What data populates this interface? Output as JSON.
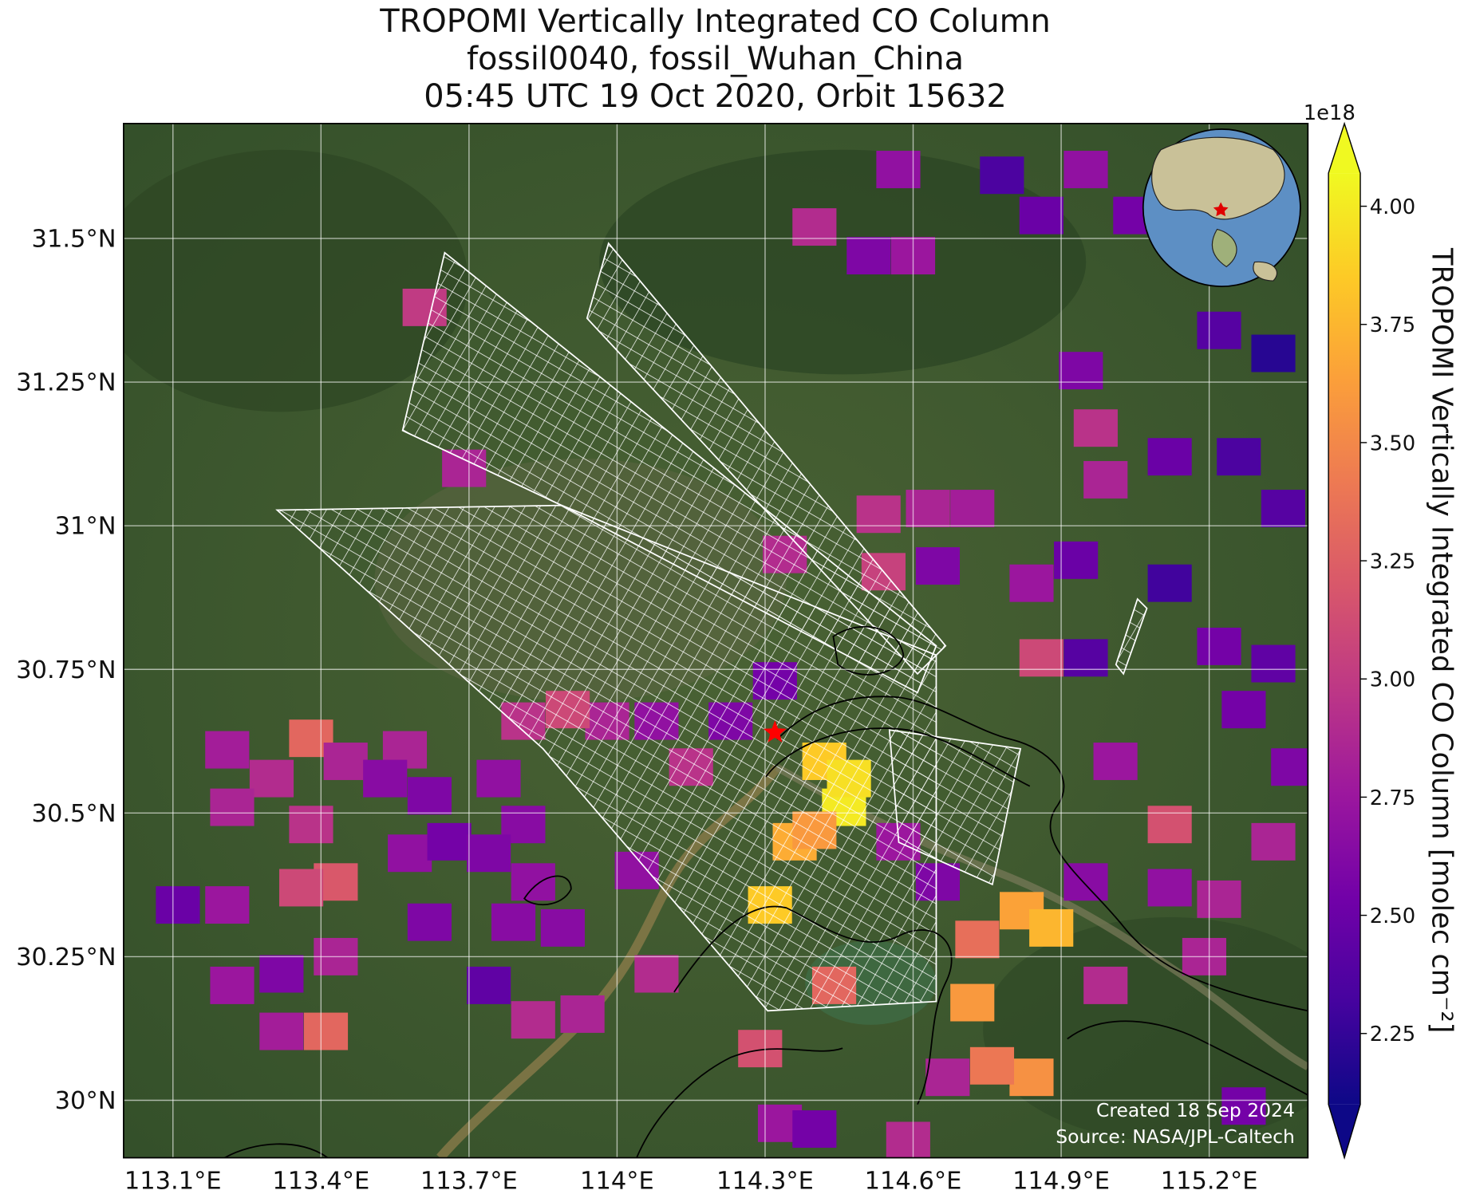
{
  "chart_data": {
    "type": "map",
    "title": [
      "TROPOMI Vertically Integrated CO Column",
      "fossil0040, fossil_Wuhan_China",
      "05:45 UTC 19 Oct 2020, Orbit 15632"
    ],
    "xlim": [
      113.0,
      115.4
    ],
    "ylim": [
      29.9,
      31.7
    ],
    "xticks": [
      {
        "value": 113.1,
        "label": "113.1°E"
      },
      {
        "value": 113.4,
        "label": "113.4°E"
      },
      {
        "value": 113.7,
        "label": "113.7°E"
      },
      {
        "value": 114.0,
        "label": "114°E"
      },
      {
        "value": 114.3,
        "label": "114.3°E"
      },
      {
        "value": 114.6,
        "label": "114.6°E"
      },
      {
        "value": 114.9,
        "label": "114.9°E"
      },
      {
        "value": 115.2,
        "label": "115.2°E"
      }
    ],
    "yticks": [
      {
        "value": 30.0,
        "label": "30°N"
      },
      {
        "value": 30.25,
        "label": "30.25°N"
      },
      {
        "value": 30.5,
        "label": "30.5°N"
      },
      {
        "value": 30.75,
        "label": "30.75°N"
      },
      {
        "value": 31.0,
        "label": "31°N"
      },
      {
        "value": 31.25,
        "label": "31.25°N"
      },
      {
        "value": 31.5,
        "label": "31.5°N"
      }
    ],
    "grid": true,
    "colormap": "plasma",
    "clim": [
      2.1,
      4.07
    ],
    "colorbar_label": "TROPOMI Vertically Integrated CO Column [molec cm⁻²]",
    "colorbar_offset": "1e18",
    "colorbar_ticks": [
      {
        "value": 2.25,
        "label": "2.25"
      },
      {
        "value": 2.5,
        "label": "2.50"
      },
      {
        "value": 2.75,
        "label": "2.75"
      },
      {
        "value": 3.0,
        "label": "3.00"
      },
      {
        "value": 3.25,
        "label": "3.25"
      },
      {
        "value": 3.5,
        "label": "3.50"
      },
      {
        "value": 3.75,
        "label": "3.75"
      },
      {
        "value": 4.0,
        "label": "4.00"
      }
    ],
    "site": {
      "lon": 114.32,
      "lat": 30.64
    },
    "cells": {
      "lon": [
        114.4,
        114.51,
        114.6,
        114.57,
        114.78,
        114.86,
        114.95,
        115.05,
        115.22,
        115.33,
        114.94,
        113.61,
        113.69,
        114.97,
        114.99,
        115.12,
        115.26,
        115.35,
        114.53,
        114.63,
        114.72,
        114.34,
        114.54,
        114.65,
        114.84,
        114.93,
        115.12,
        115.22,
        115.33,
        114.95,
        114.86,
        114.32,
        114.23,
        114.42,
        114.46,
        114.47,
        114.36,
        114.31,
        114.4,
        113.98,
        114.08,
        113.81,
        113.9,
        113.38,
        113.21,
        113.3,
        113.45,
        113.57,
        113.22,
        113.38,
        113.43,
        113.11,
        113.21,
        113.36,
        113.53,
        113.62,
        113.76,
        113.81,
        113.58,
        113.66,
        113.74,
        113.83,
        113.62,
        113.79,
        113.89,
        113.74,
        113.83,
        113.93,
        113.41,
        113.32,
        113.22,
        113.32,
        113.43,
        114.04,
        114.08,
        114.15,
        114.29,
        114.44,
        114.72,
        114.73,
        114.82,
        114.88,
        114.84,
        114.76,
        114.67,
        114.99,
        115.12,
        115.22,
        115.33,
        115.12,
        115.37,
        115.01,
        115.27,
        115.19,
        115.27,
        114.33,
        114.4,
        114.59,
        114.65,
        114.57,
        114.95
      ],
      "lat": [
        31.52,
        31.47,
        31.47,
        31.62,
        31.61,
        31.54,
        31.62,
        31.54,
        31.34,
        31.3,
        31.27,
        31.38,
        31.1,
        31.17,
        31.08,
        31.12,
        31.12,
        31.03,
        31.02,
        31.03,
        31.03,
        30.95,
        30.92,
        30.93,
        30.9,
        30.94,
        30.9,
        30.79,
        30.76,
        30.77,
        30.77,
        30.73,
        30.66,
        30.59,
        30.51,
        30.56,
        30.45,
        30.34,
        30.47,
        30.66,
        30.66,
        30.66,
        30.68,
        30.63,
        30.61,
        30.56,
        30.59,
        30.61,
        30.51,
        30.48,
        30.38,
        30.34,
        30.34,
        30.37,
        30.56,
        30.53,
        30.56,
        30.48,
        30.43,
        30.45,
        30.43,
        30.38,
        30.31,
        30.31,
        30.3,
        30.2,
        30.14,
        30.15,
        30.12,
        30.12,
        30.2,
        30.22,
        30.25,
        30.4,
        30.22,
        30.58,
        30.09,
        30.2,
        30.17,
        30.28,
        30.33,
        30.3,
        30.04,
        30.06,
        30.04,
        30.2,
        30.48,
        30.35,
        30.45,
        30.37,
        30.58,
        30.59,
        30.68,
        30.25,
        29.99,
        29.96,
        29.95,
        29.93,
        30.38,
        30.45,
        30.38
      ],
      "values": [
        2.9,
        2.6,
        2.75,
        2.7,
        2.35,
        2.5,
        2.7,
        2.55,
        2.4,
        2.2,
        2.6,
        3.0,
        2.85,
        2.95,
        2.85,
        2.5,
        2.35,
        2.4,
        2.95,
        2.85,
        2.8,
        2.9,
        3.05,
        2.6,
        2.75,
        2.5,
        2.3,
        2.55,
        2.45,
        2.4,
        3.1,
        2.55,
        2.6,
        3.85,
        4.0,
        3.95,
        3.7,
        3.85,
        3.6,
        2.85,
        2.7,
        2.95,
        3.1,
        3.3,
        2.8,
        2.9,
        2.85,
        2.85,
        2.85,
        2.95,
        3.2,
        2.5,
        2.75,
        3.1,
        2.65,
        2.6,
        2.7,
        2.65,
        2.7,
        2.55,
        2.6,
        2.7,
        2.6,
        2.65,
        2.65,
        2.45,
        2.9,
        2.85,
        3.3,
        2.8,
        2.75,
        2.6,
        2.85,
        2.7,
        2.9,
        2.95,
        3.15,
        3.3,
        3.6,
        3.35,
        3.65,
        3.75,
        3.55,
        3.4,
        2.85,
        2.9,
        3.15,
        2.85,
        2.85,
        2.7,
        2.6,
        2.75,
        2.55,
        2.85,
        2.55,
        2.75,
        2.55,
        2.9,
        2.6,
        2.75,
        2.65
      ]
    },
    "credits": [
      "Created 18 Sep 2024",
      "Source: NASA/JPL-Caltech"
    ]
  }
}
